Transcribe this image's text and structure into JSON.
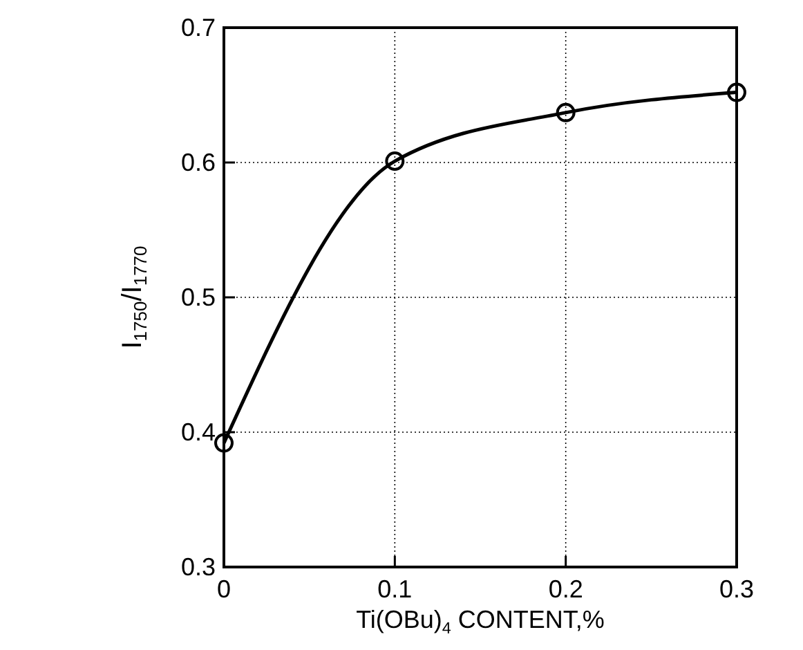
{
  "chart_data": {
    "type": "line",
    "xlabel": "Ti(OBu)$_{4}$ CONTENT,%",
    "ylabel": "I$_{1750}$/I$_{1770}$",
    "x": [
      0,
      0.1,
      0.2,
      0.3
    ],
    "series": [
      {
        "color": "#000000",
        "values": [
          0.392,
          0.601,
          0.637,
          0.652
        ]
      }
    ],
    "xlim": [
      0,
      0.3
    ],
    "ylim": [
      0.3,
      0.7
    ],
    "xticks": [
      0,
      0.1,
      0.2,
      0.3
    ],
    "yticks": [
      0.3,
      0.4,
      0.5,
      0.6,
      0.7
    ],
    "grid": true,
    "marker": "circle",
    "line_style": "solid"
  }
}
